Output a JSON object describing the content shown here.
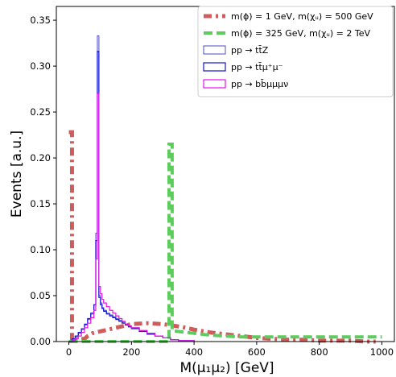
{
  "chart_data": {
    "type": "line",
    "xlabel": "M(μ₁μ₂) [GeV]",
    "ylabel": "Events [a.u.]",
    "xlim": [
      -40,
      1040
    ],
    "ylim": [
      0,
      0.365
    ],
    "x_ticks": [
      0,
      200,
      400,
      600,
      800,
      1000
    ],
    "y_ticks": [
      0.0,
      0.05,
      0.1,
      0.15,
      0.2,
      0.25,
      0.3,
      0.35
    ],
    "x_tick_labels": [
      "0",
      "200",
      "400",
      "600",
      "800",
      "1000"
    ],
    "y_tick_labels": [
      "0.00",
      "0.05",
      "0.10",
      "0.15",
      "0.20",
      "0.25",
      "0.30",
      "0.35"
    ],
    "legend_position": "top-right",
    "series": [
      {
        "name": "m(ϕ) = 1 GeV, m(χᵤ) = 500 GeV",
        "color": "#cd5c5c",
        "style": "dashdot-thick",
        "x": [
          0,
          10,
          10,
          20,
          25,
          50,
          60,
          75,
          100,
          150,
          200,
          250,
          300,
          320,
          360,
          400,
          450,
          500,
          550,
          600,
          650,
          700,
          750,
          800,
          850,
          900,
          950,
          980
        ],
        "y": [
          0.228,
          0.228,
          0.0,
          0.001,
          0.002,
          0.003,
          0.006,
          0.009,
          0.011,
          0.015,
          0.019,
          0.02,
          0.019,
          0.018,
          0.016,
          0.013,
          0.01,
          0.008,
          0.006,
          0.004,
          0.003,
          0.002,
          0.002,
          0.001,
          0.001,
          0.001,
          0.0,
          0.0
        ]
      },
      {
        "name": "m(ϕ) = 325 GeV, m(χᵤ) = 2 TeV",
        "color": "#5ccd5c",
        "style": "dashed-thick",
        "x": [
          0,
          320,
          320,
          330,
          330,
          350,
          400,
          450,
          500,
          550,
          600,
          650,
          700,
          750,
          800,
          850,
          900,
          950,
          1000
        ],
        "y": [
          0.0,
          0.0,
          0.215,
          0.215,
          0.012,
          0.011,
          0.009,
          0.007,
          0.006,
          0.005,
          0.005,
          0.005,
          0.005,
          0.005,
          0.005,
          0.005,
          0.005,
          0.005,
          0.005
        ]
      },
      {
        "name": "pp → tt̄Z",
        "color": "#6a6acd",
        "style": "step",
        "x": [
          0,
          10,
          20,
          30,
          40,
          50,
          60,
          70,
          80,
          86,
          91,
          96,
          101,
          106,
          111,
          120,
          130,
          140,
          150,
          160,
          170,
          180,
          190,
          200,
          225,
          250,
          275,
          300,
          325,
          350,
          400
        ],
        "y": [
          0.0,
          0.002,
          0.005,
          0.009,
          0.013,
          0.018,
          0.024,
          0.03,
          0.04,
          0.118,
          0.333,
          0.05,
          0.042,
          0.037,
          0.034,
          0.031,
          0.029,
          0.027,
          0.025,
          0.023,
          0.021,
          0.019,
          0.017,
          0.015,
          0.012,
          0.009,
          0.006,
          0.004,
          0.002,
          0.001,
          0.0
        ]
      },
      {
        "name": "pp → tt̄μ⁺μ⁻",
        "color": "#1414d2",
        "style": "step",
        "x": [
          0,
          10,
          20,
          30,
          40,
          50,
          60,
          70,
          80,
          86,
          91,
          96,
          101,
          106,
          111,
          120,
          130,
          140,
          150,
          160,
          170,
          180,
          190,
          200,
          225,
          250,
          275,
          300,
          325,
          350,
          400
        ],
        "y": [
          0.0,
          0.003,
          0.006,
          0.01,
          0.014,
          0.019,
          0.025,
          0.031,
          0.04,
          0.11,
          0.316,
          0.048,
          0.04,
          0.036,
          0.033,
          0.03,
          0.028,
          0.026,
          0.024,
          0.022,
          0.02,
          0.018,
          0.016,
          0.014,
          0.011,
          0.008,
          0.006,
          0.004,
          0.002,
          0.001,
          0.0
        ]
      },
      {
        "name": "pp → bb̄μμμν",
        "color": "#e614e6",
        "style": "step",
        "x": [
          0,
          10,
          20,
          30,
          40,
          50,
          60,
          70,
          80,
          86,
          91,
          96,
          101,
          106,
          111,
          120,
          130,
          140,
          150,
          160,
          170,
          180,
          190,
          200,
          225,
          250,
          275,
          300,
          325,
          350,
          400
        ],
        "y": [
          0.0,
          0.001,
          0.003,
          0.006,
          0.01,
          0.015,
          0.02,
          0.026,
          0.034,
          0.09,
          0.27,
          0.06,
          0.052,
          0.046,
          0.042,
          0.038,
          0.034,
          0.031,
          0.028,
          0.025,
          0.022,
          0.019,
          0.017,
          0.015,
          0.012,
          0.009,
          0.006,
          0.004,
          0.002,
          0.001,
          0.0
        ]
      }
    ]
  }
}
